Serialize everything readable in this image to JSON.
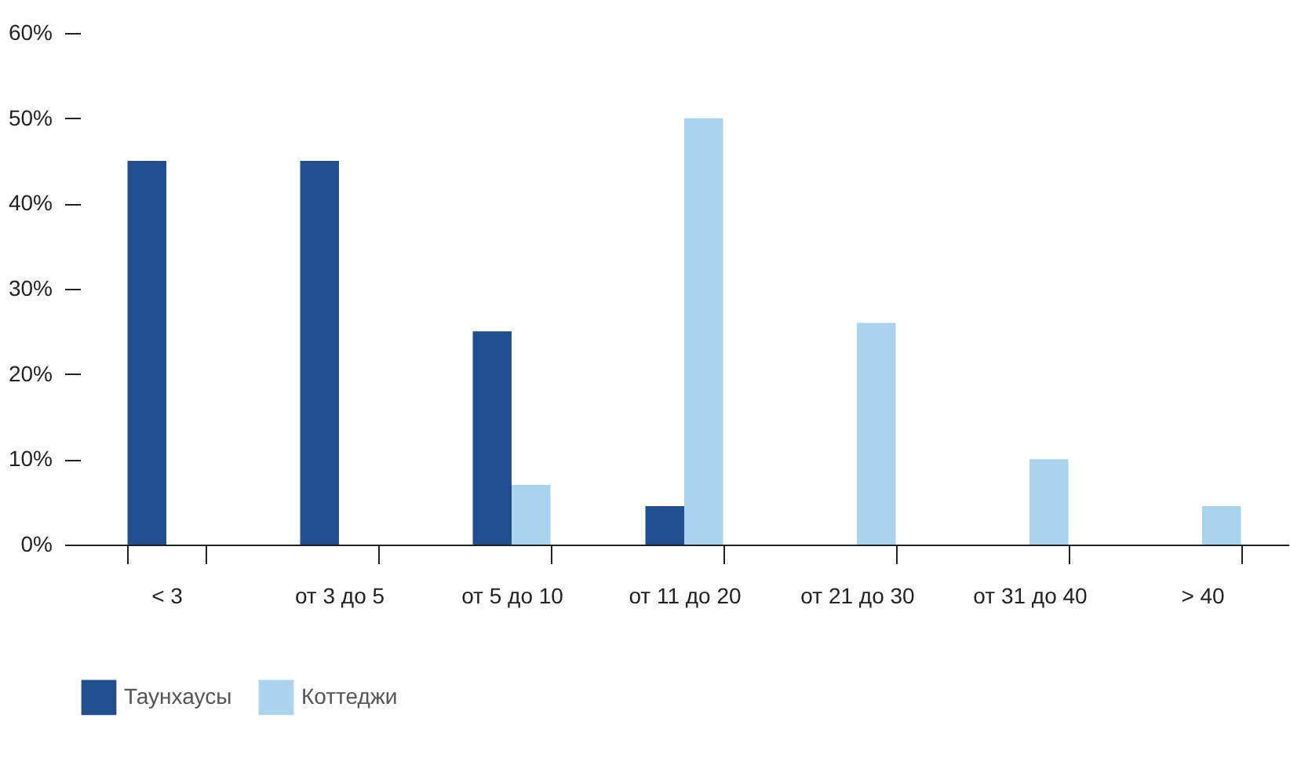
{
  "chart_data": {
    "type": "bar",
    "categories": [
      "< 3",
      "от 3 до 5",
      "от 5 до 10",
      "от 11 до 20",
      "от 21 до 30",
      "от 31 до 40",
      "> 40"
    ],
    "series": [
      {
        "name": "Таунхаусы",
        "color": "#1f4f8f",
        "values": [
          45,
          45,
          25,
          4.5,
          null,
          null,
          null
        ]
      },
      {
        "name": "Коттеджи",
        "color": "#a9d3ee",
        "values": [
          null,
          null,
          7,
          50,
          26,
          10,
          4.5
        ]
      }
    ],
    "ylim": [
      0,
      60
    ],
    "yticks": [
      {
        "value": 0,
        "label": "0%"
      },
      {
        "value": 10,
        "label": "10%"
      },
      {
        "value": 20,
        "label": "20%"
      },
      {
        "value": 30,
        "label": "30%"
      },
      {
        "value": 40,
        "label": "40%"
      },
      {
        "value": 50,
        "label": "50%"
      },
      {
        "value": 60,
        "label": "60%"
      }
    ],
    "grid": false,
    "legend": "bottom left"
  }
}
